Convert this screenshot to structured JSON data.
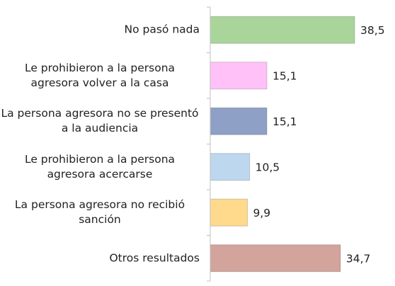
{
  "chart_data": {
    "type": "bar",
    "orientation": "horizontal",
    "categories": [
      "No pasó nada",
      "Le prohibieron a la persona agresora volver a la casa",
      "La persona agresora no se presentó a la audiencia",
      "Le prohibieron a la persona agresora acercarse",
      "La persona agresora no recibió sanción",
      "Otros resultados"
    ],
    "values": [
      38.5,
      15.1,
      15.1,
      10.5,
      9.9,
      34.7
    ],
    "value_labels": [
      "38,5",
      "15,1",
      "15,1",
      "10,5",
      "9,9",
      "34,7"
    ],
    "colors": [
      "#a9d59b",
      "#ffc1f7",
      "#8fa0c6",
      "#bdd7ee",
      "#ffd98c",
      "#d3a49c"
    ],
    "xlim": [
      0,
      40
    ]
  }
}
